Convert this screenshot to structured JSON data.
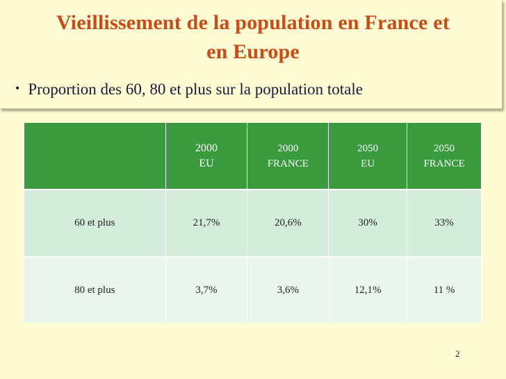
{
  "slide": {
    "title_line1": "Vieillissement de la population en France et",
    "title_line2": "en Europe",
    "bullet_symbol": "•",
    "bullet_text": "Proportion des 60, 80 et plus sur la population totale",
    "page_number": "2"
  },
  "table": {
    "headers": [
      {
        "line1": "",
        "line2": ""
      },
      {
        "line1": "2000",
        "line2": "EU"
      },
      {
        "line1": "2000",
        "line2": "FRANCE"
      },
      {
        "line1": "2050",
        "line2": "EU"
      },
      {
        "line1": "2050",
        "line2": "FRANCE"
      }
    ],
    "rows": [
      [
        "60 et plus",
        "21,7%",
        "20,6%",
        "30%",
        "33%"
      ],
      [
        "80 et plus",
        "3,7%",
        "3,6%",
        "12,1%",
        "11 %"
      ]
    ]
  },
  "colors": {
    "background": "#fffbd2",
    "title": "#cc4a16",
    "header_fill": "#3a9a3e",
    "row1_fill": "#d3ecdb",
    "row2_fill": "#eaf5ec"
  }
}
